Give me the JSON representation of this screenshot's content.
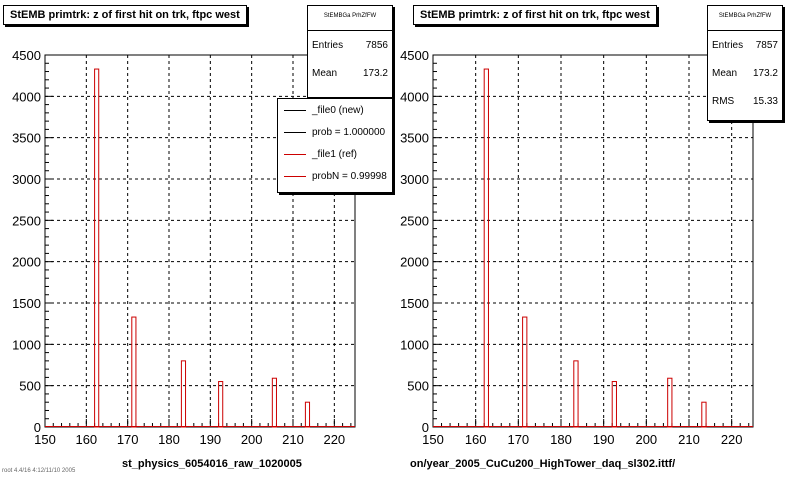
{
  "panels": [
    {
      "title": "StEMB primtrk: z of first hit on trk, ftpc west",
      "stats": {
        "name": "StEMBGa PrhZfFW",
        "rows": [
          {
            "label": "Entries",
            "value": "7856"
          },
          {
            "label": "Mean",
            "value": "173.2"
          }
        ]
      },
      "legend": [
        {
          "label": "_file0 (new)",
          "color": "#000000"
        },
        {
          "label": "prob = 1.000000",
          "color": "#000000"
        },
        {
          "label": "_file1 (ref)",
          "color": "#cc0000"
        },
        {
          "label": "probN = 0.99998",
          "color": "#cc0000"
        }
      ],
      "filename": "st_physics_6054016_raw_1020005"
    },
    {
      "title": "StEMB primtrk: z of first hit on trk, ftpc west",
      "stats": {
        "name": "StEMBGa PrhZfFW",
        "rows": [
          {
            "label": "Entries",
            "value": "7857"
          },
          {
            "label": "Mean",
            "value": "173.2"
          },
          {
            "label": "RMS",
            "value": "15.33"
          }
        ]
      },
      "filename": "on/year_2005_CuCu200_HighTower_daq_sl302.ittf/"
    }
  ],
  "footer": "root 4.4/16 4:12/11/10 2005",
  "chart_data": [
    {
      "type": "bar",
      "title": "StEMB primtrk: z of first hit on trk, ftpc west",
      "xlim": [
        150,
        225
      ],
      "ylim": [
        0,
        4500
      ],
      "xticks": [
        150,
        160,
        170,
        180,
        190,
        200,
        210,
        220
      ],
      "yticks": [
        0,
        500,
        1000,
        1500,
        2000,
        2500,
        3000,
        3500,
        4000,
        4500
      ],
      "grid": true,
      "series": [
        {
          "color": "#cc0000",
          "bins": [
            [
              162,
              163,
              4330
            ],
            [
              171,
              172,
              1330
            ],
            [
              183,
              184,
              800
            ],
            [
              192,
              193,
              550
            ],
            [
              205,
              206,
              590
            ],
            [
              213,
              214,
              300
            ]
          ]
        }
      ]
    },
    {
      "type": "bar",
      "title": "StEMB primtrk: z of first hit on trk, ftpc west",
      "xlim": [
        150,
        225
      ],
      "ylim": [
        0,
        4500
      ],
      "xticks": [
        150,
        160,
        170,
        180,
        190,
        200,
        210,
        220
      ],
      "yticks": [
        0,
        500,
        1000,
        1500,
        2000,
        2500,
        3000,
        3500,
        4000,
        4500
      ],
      "grid": true,
      "series": [
        {
          "color": "#cc0000",
          "bins": [
            [
              162,
              163,
              4330
            ],
            [
              171,
              172,
              1330
            ],
            [
              183,
              184,
              800
            ],
            [
              192,
              193,
              550
            ],
            [
              205,
              206,
              590
            ],
            [
              213,
              214,
              300
            ]
          ]
        }
      ]
    }
  ]
}
